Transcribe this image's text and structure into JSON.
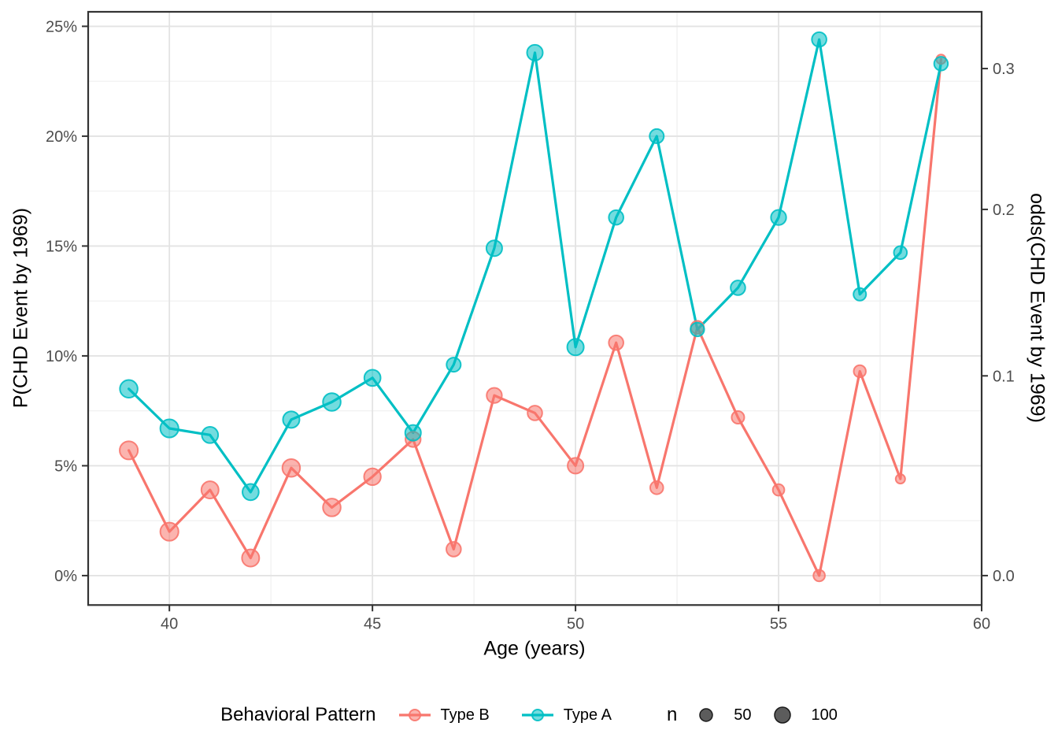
{
  "chart_data": {
    "type": "line",
    "title": "",
    "xlabel": "Age (years)",
    "ylabel_left": "P(CHD Event by 1969)",
    "ylabel_right": "odds(CHD Event by 1969)",
    "ages": [
      39,
      40,
      41,
      42,
      43,
      44,
      45,
      46,
      47,
      48,
      49,
      50,
      51,
      52,
      53,
      54,
      55,
      56,
      57,
      58,
      59
    ],
    "series": [
      {
        "name": "Type B",
        "color": "#F8766D",
        "p_percent": [
          5.7,
          2.0,
          3.9,
          0.8,
          4.9,
          3.1,
          4.5,
          6.2,
          1.2,
          8.2,
          7.4,
          5.0,
          10.6,
          4.0,
          11.3,
          7.2,
          3.9,
          0.0,
          9.3,
          4.4,
          23.5
        ],
        "n": [
          150,
          150,
          130,
          130,
          140,
          140,
          120,
          90,
          80,
          90,
          80,
          100,
          80,
          56,
          56,
          50,
          37,
          37,
          44,
          17,
          17
        ]
      },
      {
        "name": "Type A",
        "color": "#00BFC4",
        "p_percent": [
          8.5,
          6.7,
          6.4,
          3.8,
          7.1,
          7.9,
          9.0,
          6.5,
          9.6,
          14.9,
          23.8,
          10.4,
          16.3,
          20.0,
          11.2,
          13.1,
          16.3,
          24.4,
          12.8,
          14.7,
          23.3
        ],
        "n": [
          140,
          150,
          110,
          110,
          115,
          140,
          110,
          100,
          73,
          100,
          100,
          115,
          80,
          73,
          66,
          80,
          90,
          80,
          50,
          56,
          66
        ]
      }
    ],
    "xlim": [
      38,
      60
    ],
    "ylim_percent": [
      -1.34,
      25.66
    ],
    "x_major_ticks": [
      40,
      45,
      50,
      55,
      60
    ],
    "x_minor_ticks": [
      42.5,
      47.5,
      52.5,
      57.5
    ],
    "y_major_ticks_percent": [
      0,
      5,
      10,
      15,
      20,
      25
    ],
    "y_minor_ticks_percent": [
      2.5,
      7.5,
      12.5,
      17.5,
      22.5
    ],
    "y_tick_labels_left": [
      "0%",
      "5%",
      "10%",
      "15%",
      "20%",
      "25%"
    ],
    "right_axis": {
      "ticks_odds": [
        0.0,
        0.1,
        0.2,
        0.3
      ],
      "transform": "odds = p/(1-p)"
    },
    "grid": true,
    "legend": {
      "position": "bottom",
      "title": "Behavioral Pattern",
      "entries": [
        "Type B",
        "Type A"
      ],
      "size_title": "n",
      "size_breaks": [
        50,
        100
      ]
    },
    "colors": {
      "type_b": "#F8766D",
      "type_a": "#00BFC4",
      "grid_major": "#E3E3E3",
      "grid_minor": "#EFEFEF",
      "panel_border": "#333333",
      "tick_text": "#4D4D4D",
      "size_key_fill": "#404040"
    }
  }
}
